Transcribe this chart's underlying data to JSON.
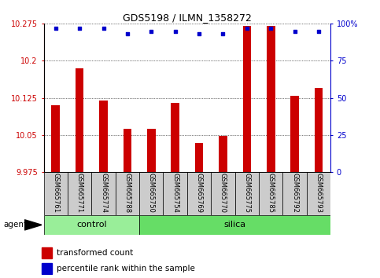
{
  "title": "GDS5198 / ILMN_1358272",
  "samples": [
    "GSM665761",
    "GSM665771",
    "GSM665774",
    "GSM665788",
    "GSM665750",
    "GSM665754",
    "GSM665769",
    "GSM665770",
    "GSM665775",
    "GSM665785",
    "GSM665792",
    "GSM665793"
  ],
  "bar_values": [
    10.11,
    10.185,
    10.12,
    10.063,
    10.063,
    10.115,
    10.035,
    10.048,
    10.27,
    10.27,
    10.13,
    10.145
  ],
  "percentile_values": [
    97,
    97,
    97,
    93,
    95,
    95,
    93,
    93,
    97,
    97,
    95,
    95
  ],
  "groups": [
    {
      "label": "control",
      "start": 0,
      "end": 4
    },
    {
      "label": "silica",
      "start": 4,
      "end": 12
    }
  ],
  "ymin": 9.975,
  "ymax": 10.275,
  "yticks": [
    9.975,
    10.05,
    10.125,
    10.2,
    10.275
  ],
  "ytick_labels": [
    "9.975",
    "10.05",
    "10.125",
    "10.2",
    "10.275"
  ],
  "y2min": 0,
  "y2max": 100,
  "y2ticks": [
    0,
    25,
    50,
    75,
    100
  ],
  "y2tick_labels": [
    "0",
    "25",
    "50",
    "75",
    "100%"
  ],
  "bar_color": "#cc0000",
  "dot_color": "#0000cc",
  "left_tick_color": "#cc0000",
  "right_tick_color": "#0000cc",
  "control_color": "#99ee99",
  "silica_color": "#66dd66",
  "agent_label": "agent",
  "legend_bar_label": "transformed count",
  "legend_dot_label": "percentile rank within the sample",
  "bar_width": 0.35,
  "grid_color": "#000000",
  "background_color": "#ffffff",
  "sample_area_color": "#cccccc"
}
